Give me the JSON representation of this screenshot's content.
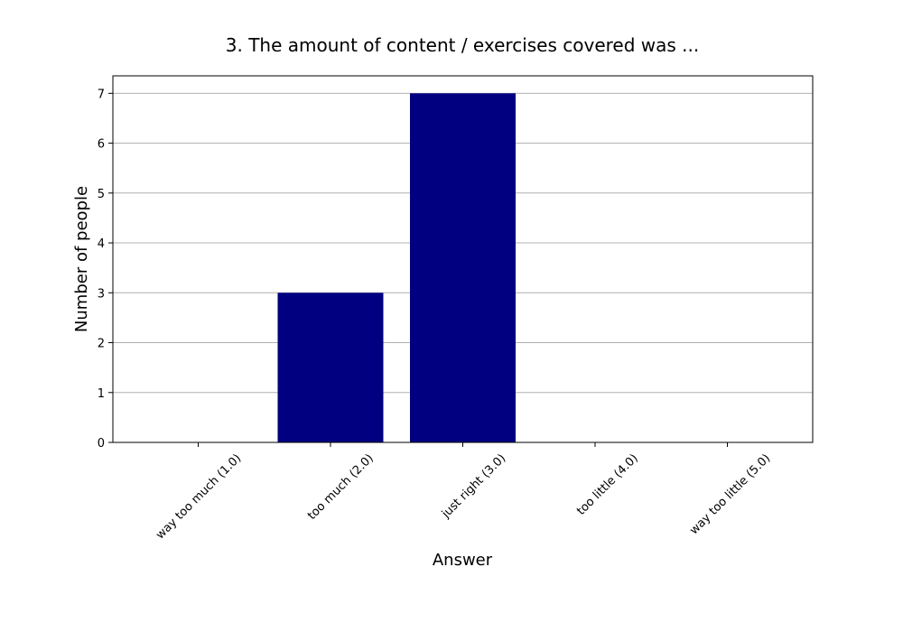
{
  "chart_data": {
    "type": "bar",
    "title": "3. The amount of content / exercises covered was ...",
    "xlabel": "Answer",
    "ylabel": "Number of people",
    "categories": [
      "way too much (1.0)",
      "too much (2.0)",
      "just right (3.0)",
      "too little (4.0)",
      "way too little (5.0)"
    ],
    "values": [
      0,
      3,
      7,
      0,
      0
    ],
    "ylim": [
      0,
      7.35
    ],
    "yticks": [
      0,
      1,
      2,
      3,
      4,
      5,
      6,
      7
    ],
    "grid": true,
    "bar_color": "#000080"
  }
}
